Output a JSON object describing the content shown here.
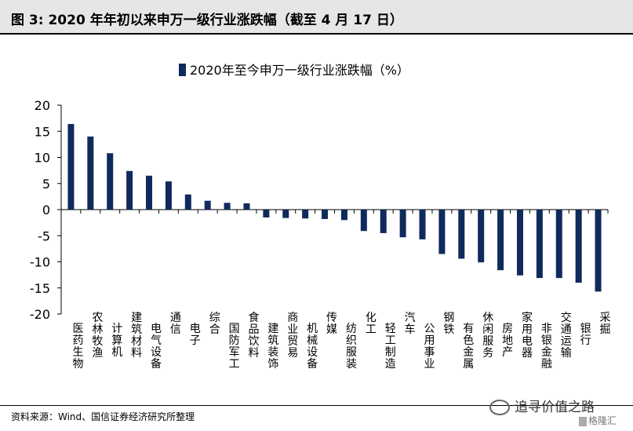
{
  "figure": {
    "title": "图 3:  2020 年年初以来申万一级行业涨跌幅（截至 4 月 17 日）",
    "source": "资料来源：Wind、国信证券经济研究所整理",
    "watermark": "追寻价值之路",
    "watermark_logo": "格隆汇"
  },
  "chart_data": {
    "type": "bar",
    "legend": "2020年至今申万一级行业涨跌幅（%）",
    "legend_position": "top-center",
    "color": "#0f2a5c",
    "ylim": [
      -20,
      20
    ],
    "yticks": [
      -20,
      -15,
      -10,
      -5,
      0,
      5,
      10,
      15,
      20
    ],
    "grid": false,
    "categories": [
      "医药生物",
      "农林牧渔",
      "计算机",
      "建筑材料",
      "电气设备",
      "通信",
      "电子",
      "综合",
      "国防军工",
      "食品饮料",
      "建筑装饰",
      "商业贸易",
      "机械设备",
      "传媒",
      "纺织服装",
      "化工",
      "轻工制造",
      "汽车",
      "公用事业",
      "钢铁",
      "有色金属",
      "休闲服务",
      "房地产",
      "家用电器",
      "非银金融",
      "交通运输",
      "银行",
      "采掘"
    ],
    "values": [
      16.4,
      14.0,
      10.8,
      7.4,
      6.5,
      5.4,
      2.9,
      1.7,
      1.3,
      1.2,
      -1.5,
      -1.6,
      -1.7,
      -1.8,
      -2.0,
      -4.1,
      -4.5,
      -5.3,
      -5.7,
      -8.5,
      -9.4,
      -10.1,
      -11.6,
      -12.6,
      -13.1,
      -13.1,
      -14.0,
      -15.7
    ]
  }
}
